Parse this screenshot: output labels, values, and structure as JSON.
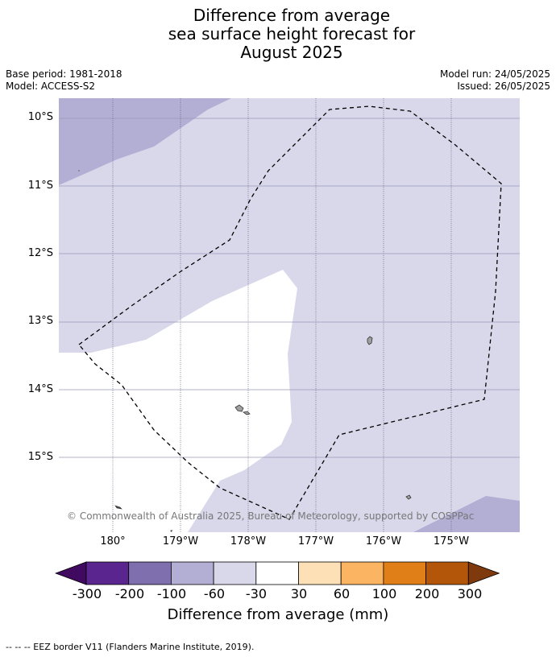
{
  "title_lines": [
    "Difference from average",
    "sea surface height forecast for",
    "August 2025"
  ],
  "meta": {
    "base_period": "Base period: 1981-2018",
    "model": "Model: ACCESS-S2",
    "model_run": "Model run: 24/05/2025",
    "issued": "Issued: 26/05/2025"
  },
  "map": {
    "lat_labels": [
      "10°S",
      "11°S",
      "12°S",
      "13°S",
      "14°S",
      "15°S"
    ],
    "lon_labels": [
      "180°",
      "179°W",
      "178°W",
      "177°W",
      "176°W",
      "175°W"
    ],
    "copyright": "© Commonwealth of Australia 2025, Bureau of Meteorology, supported by COSPPac",
    "colors": {
      "band_m100_m60": "#b3aed4",
      "band_m60_m30": "#d8d8ea",
      "band_m30_30": "#ffffff",
      "land": "#a0a0a0",
      "gridline": "#9a9ab8",
      "eez_border": "#000000"
    }
  },
  "colorbar": {
    "title": "Difference from average (mm)",
    "tick_labels": [
      "-300",
      "-200",
      "-100",
      "-60",
      "-30",
      "30",
      "60",
      "100",
      "200",
      "300"
    ],
    "colors": [
      "#3f0a5f",
      "#5b2590",
      "#7f6fae",
      "#b3aed4",
      "#d8d8ea",
      "#ffffff",
      "#fde0b6",
      "#fbb462",
      "#e07f18",
      "#b4560a",
      "#7e3a0c"
    ]
  },
  "footnote": "--  --  -- EEZ border V11 (Flanders Marine Institute, 2019)."
}
